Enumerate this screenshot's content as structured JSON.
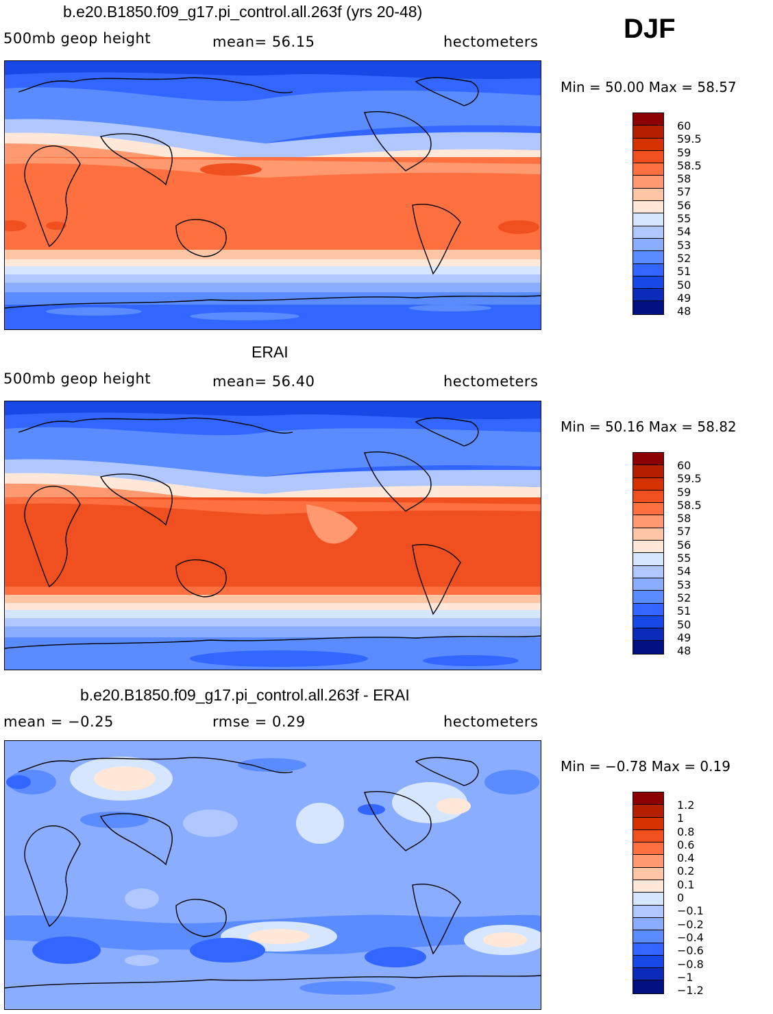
{
  "season": "DJF",
  "panels": [
    {
      "title": "b.e20.B1850.f09_g17.pi_control.all.263f (yrs 20-48)",
      "left_label": "500mb  geop  height",
      "center_label": "mean=   56.15",
      "right_label": "hectometers",
      "minmax": "Min =   50.00  Max =   58.57"
    },
    {
      "title": "ERAI",
      "left_label": "500mb  geop  height",
      "center_label": "mean=   56.40",
      "right_label": "hectometers",
      "minmax": "Min =   50.16  Max =   58.82"
    },
    {
      "title": "b.e20.B1850.f09_g17.pi_control.all.263f - ERAI",
      "left_label": "mean  =    −0.25",
      "center_label": "rmse  =     0.29",
      "right_label": "hectometers",
      "minmax": "Min =  −0.78  Max =     0.19"
    }
  ],
  "chart_data": [
    {
      "type": "heatmap",
      "title": "b.e20.B1850.f09_g17.pi_control.all.263f (yrs 20-48)",
      "variable": "500mb geop height",
      "units": "hectometers",
      "mean": 56.15,
      "min": 50.0,
      "max": 58.57,
      "colorbar_levels": [
        "60",
        "59.5",
        "59",
        "58.5",
        "58",
        "57",
        "56",
        "55",
        "54",
        "53",
        "52",
        "51",
        "50",
        "49",
        "48"
      ],
      "colorbar_colors": [
        "#8b0000",
        "#b22000",
        "#d43200",
        "#f05020",
        "#ff7040",
        "#ff9a70",
        "#ffc6a6",
        "#ffe8d8",
        "#d6e6ff",
        "#b0c8ff",
        "#8aadff",
        "#5a8cff",
        "#3366ff",
        "#1848e6",
        "#0a2cb8",
        "#001080"
      ]
    },
    {
      "type": "heatmap",
      "title": "ERAI",
      "variable": "500mb geop height",
      "units": "hectometers",
      "mean": 56.4,
      "min": 50.16,
      "max": 58.82,
      "colorbar_levels": [
        "60",
        "59.5",
        "59",
        "58.5",
        "58",
        "57",
        "56",
        "55",
        "54",
        "53",
        "52",
        "51",
        "50",
        "49",
        "48"
      ],
      "colorbar_colors": [
        "#8b0000",
        "#b22000",
        "#d43200",
        "#f05020",
        "#ff7040",
        "#ff9a70",
        "#ffc6a6",
        "#ffe8d8",
        "#d6e6ff",
        "#b0c8ff",
        "#8aadff",
        "#5a8cff",
        "#3366ff",
        "#1848e6",
        "#0a2cb8",
        "#001080"
      ]
    },
    {
      "type": "heatmap",
      "title": "b.e20.B1850.f09_g17.pi_control.all.263f - ERAI",
      "units": "hectometers",
      "mean": -0.25,
      "rmse": 0.29,
      "min": -0.78,
      "max": 0.19,
      "colorbar_levels": [
        "1.2",
        "1",
        "0.8",
        "0.6",
        "0.4",
        "0.2",
        "0.1",
        "0",
        "−0.1",
        "−0.2",
        "−0.4",
        "−0.6",
        "−0.8",
        "−1",
        "−1.2"
      ],
      "colorbar_colors": [
        "#8b0000",
        "#b22000",
        "#d43200",
        "#f05020",
        "#ff7040",
        "#ff9a70",
        "#ffc6a6",
        "#ffe8d8",
        "#d6e6ff",
        "#b0c8ff",
        "#8aadff",
        "#5a8cff",
        "#3366ff",
        "#1848e6",
        "#0a2cb8",
        "#001080"
      ]
    }
  ]
}
